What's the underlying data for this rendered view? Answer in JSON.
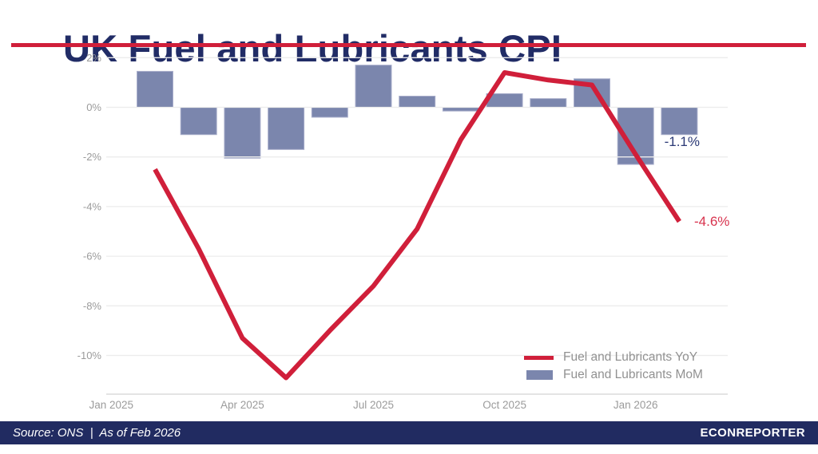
{
  "header": {
    "title": "UK Fuel and Lubricants CPI"
  },
  "colors": {
    "navy": "#212c66",
    "accent_red": "#d01f3a",
    "bar_blue": "#7b86ad",
    "grid": "#ececec",
    "axis_line": "#dcdcdc",
    "axis_text": "#9b9b9b",
    "legend_text": "#919191",
    "mom_label": "#2c3a76",
    "yoy_label": "#d8334e",
    "footer_bg": "#212b61"
  },
  "chart_data": {
    "type": "bar",
    "subtype": "combo line+bar",
    "categories": [
      "Feb 2025",
      "Mar 2025",
      "Apr 2025",
      "May 2025",
      "Jun 2025",
      "Jul 2025",
      "Aug 2025",
      "Sep 2025",
      "Oct 2025",
      "Nov 2025",
      "Dec 2025",
      "Jan 2026",
      "Feb 2026"
    ],
    "series": [
      {
        "name": "Fuel and Lubricants YoY",
        "type": "line",
        "color": "#d01f3a",
        "values": [
          -2.5,
          -5.7,
          -9.3,
          -10.9,
          -9.0,
          -7.2,
          -4.9,
          -1.3,
          1.4,
          1.1,
          0.9,
          -1.9,
          -4.6
        ]
      },
      {
        "name": "Fuel and Lubricants MoM",
        "type": "bar",
        "color": "#7b86ad",
        "values": [
          1.45,
          -1.1,
          -2.05,
          -1.7,
          -0.4,
          1.7,
          0.45,
          -0.15,
          0.55,
          0.35,
          1.15,
          -2.3,
          -1.1
        ]
      }
    ],
    "x_tick_labels": [
      "Jan 2025",
      "Apr 2025",
      "Jul 2025",
      "Oct 2025",
      "Jan 2026"
    ],
    "y_ticks": [
      2,
      0,
      -2,
      -4,
      -6,
      -8,
      -10
    ],
    "y_tick_labels": [
      "2%",
      "0%",
      "-2%",
      "-4%",
      "-6%",
      "-8%",
      "-10%"
    ],
    "ylim": [
      -11.6,
      2.2
    ],
    "grid": true,
    "legend_position": "inside bottom-right",
    "annotations": [
      {
        "text": "-1.1%",
        "series": "Fuel and Lubricants MoM",
        "category": "Feb 2026"
      },
      {
        "text": "-4.6%",
        "series": "Fuel and Lubricants YoY",
        "category": "Feb 2026"
      }
    ]
  },
  "footer": {
    "source": "Source: ONS  |  As of Feb 2026",
    "brand": "ECONREPORTER"
  }
}
